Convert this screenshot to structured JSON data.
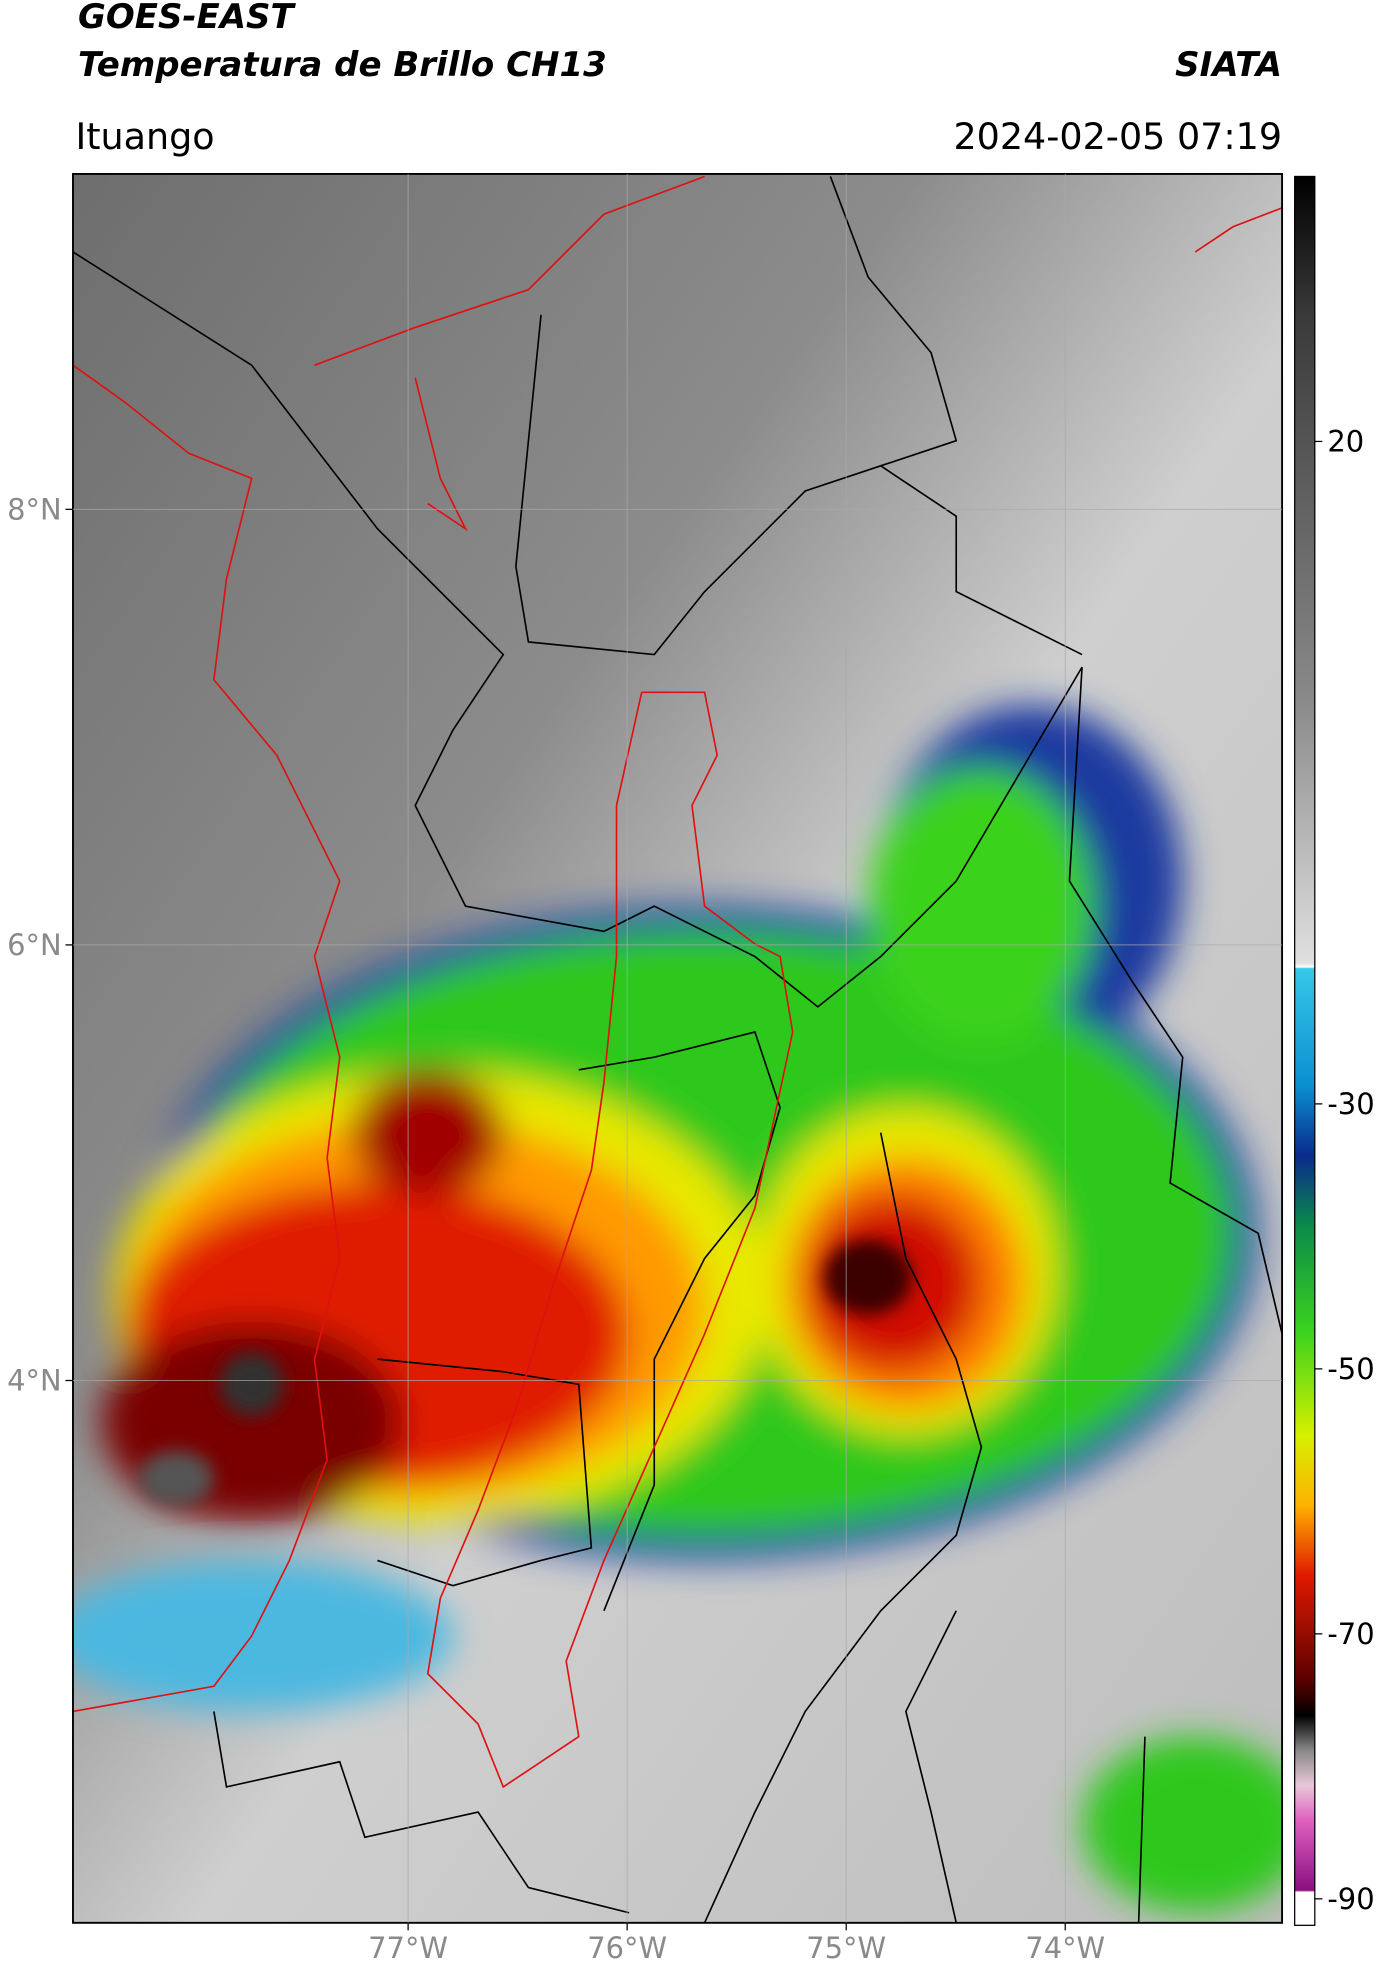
{
  "header": {
    "title": "GOES-EAST",
    "subtitle": "Temperatura de Brillo CH13",
    "source": "SIATA",
    "location": "Ituango",
    "datetime": "2024-02-05 07:19"
  },
  "map": {
    "xlim": [
      -78.53,
      -73.01
    ],
    "ylim": [
      1.51,
      9.54
    ],
    "xticks": [
      {
        "value": -77,
        "label": "77°W"
      },
      {
        "value": -76,
        "label": "76°W"
      },
      {
        "value": -75,
        "label": "75°W"
      },
      {
        "value": -74,
        "label": "74°W"
      }
    ],
    "yticks": [
      {
        "value": 8,
        "label": "8°N"
      },
      {
        "value": 6,
        "label": "6°N"
      },
      {
        "value": 4,
        "label": "4°N"
      }
    ],
    "grid": true
  },
  "colorbar": {
    "lim": [
      -92,
      40
    ],
    "ticks": [
      20,
      -30,
      -50,
      -70,
      -90
    ]
  }
}
